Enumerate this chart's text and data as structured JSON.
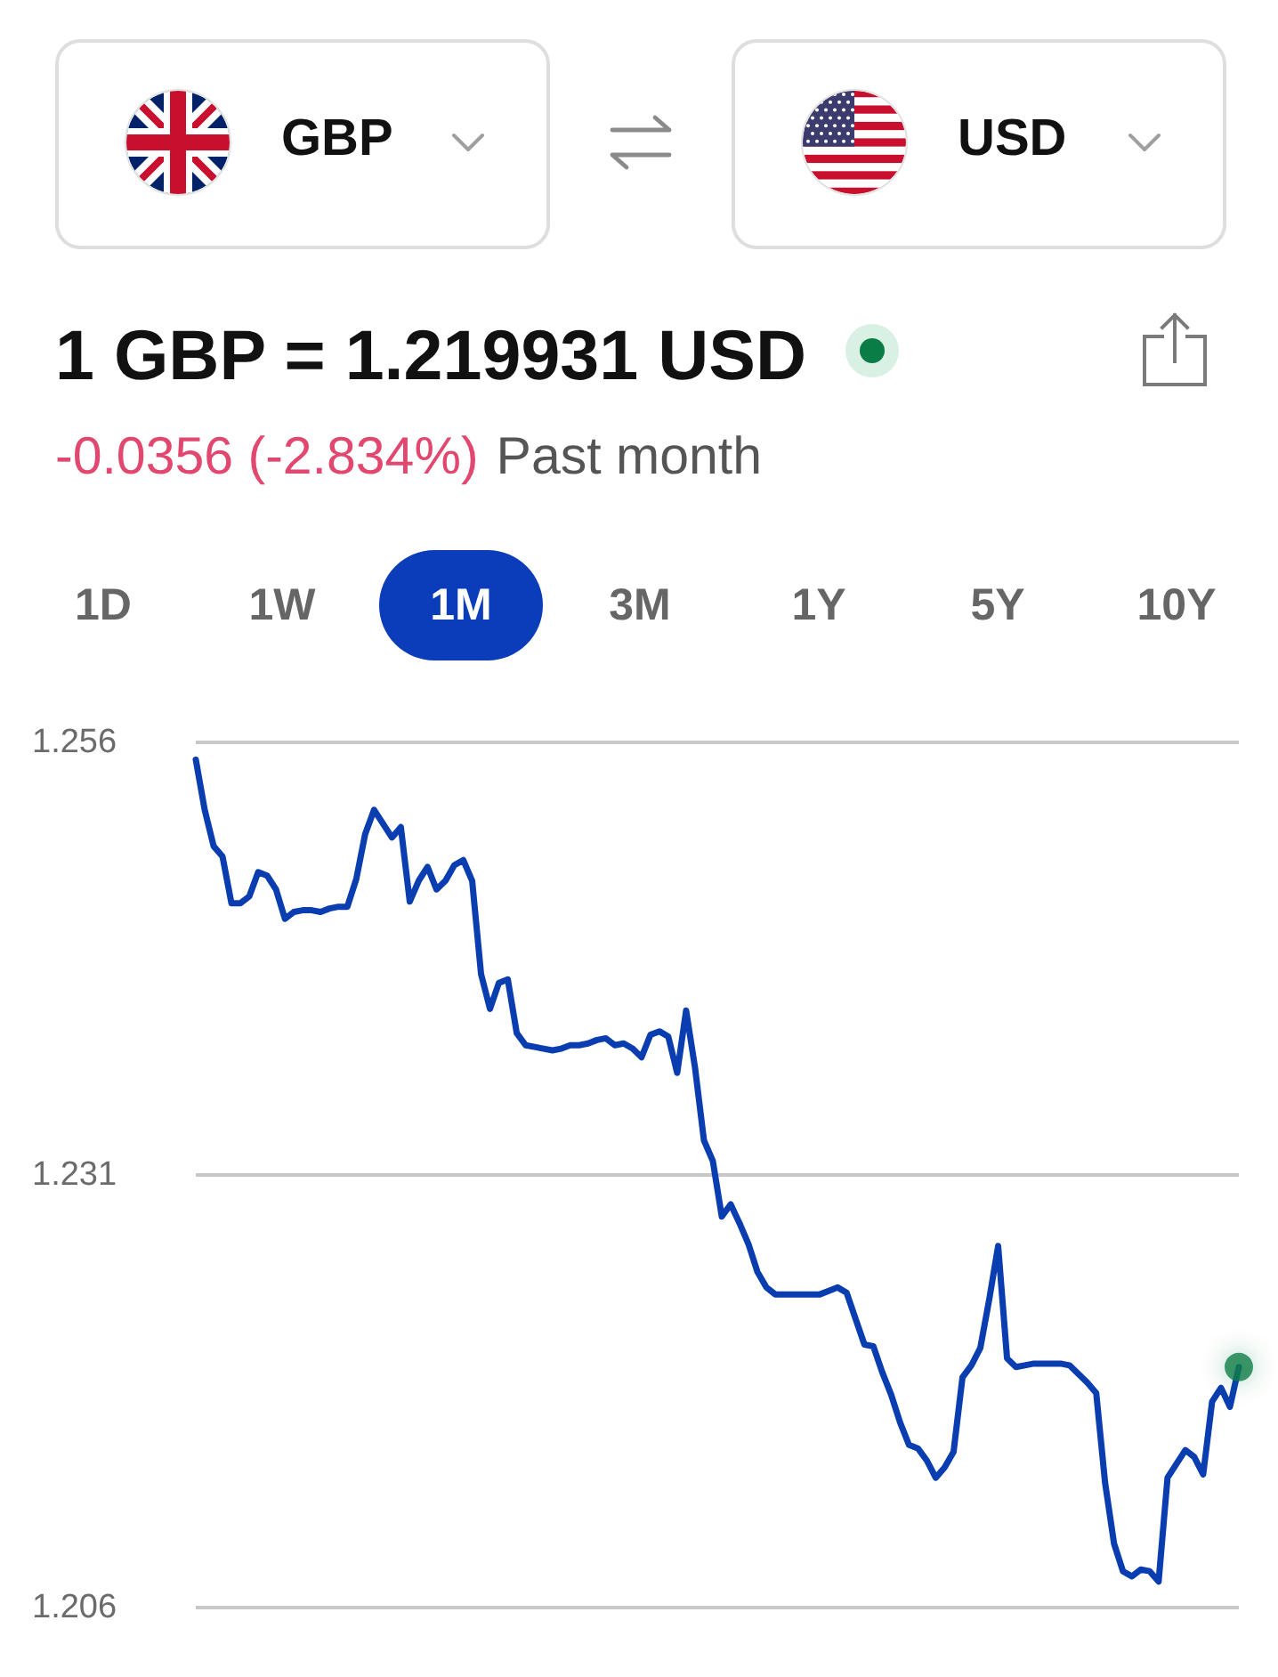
{
  "chart_data": {
    "type": "line",
    "title": "1 GBP = 1.219931 USD",
    "subtitle": "-0.0356 (-2.834%)",
    "annotations": [
      "GBP",
      "USD",
      "Past month",
      "1D",
      "1W",
      "1M",
      "3M",
      "1Y",
      "5Y",
      "10Y"
    ],
    "categories": [
      null,
      null,
      null,
      null,
      null,
      null,
      null,
      null,
      null,
      null,
      null,
      null,
      null,
      null,
      null,
      null,
      null,
      null,
      null,
      null,
      null,
      null,
      null,
      null,
      null,
      null,
      null,
      null,
      null,
      null,
      null,
      null,
      null,
      null,
      null,
      null,
      null,
      null,
      null,
      null,
      null,
      null,
      null,
      null,
      null,
      null,
      null,
      null,
      null,
      null,
      null,
      null,
      null,
      null,
      null,
      null,
      null,
      null,
      null,
      null,
      null,
      null,
      null,
      null,
      null,
      null,
      null,
      null,
      null,
      null,
      null,
      null,
      null,
      null,
      null,
      null,
      null,
      null,
      null,
      null,
      null,
      null,
      null,
      null,
      null,
      null,
      null,
      null,
      null,
      null,
      null,
      null,
      null,
      null,
      null,
      null,
      null,
      null,
      null,
      null,
      null,
      null,
      null,
      null,
      null,
      null,
      null,
      null,
      null,
      null,
      null,
      null,
      null,
      null,
      null,
      null,
      null,
      null
    ],
    "series": [
      {
        "color": "#0a3db0",
        "marker": "none",
        "values": [
          1.255,
          1.2521,
          1.25,
          1.2494,
          1.2467,
          1.2467,
          1.2471,
          1.2485,
          1.2483,
          1.2475,
          1.2458,
          1.2462,
          1.2463,
          1.2463,
          1.2462,
          1.2464,
          1.2465,
          1.2465,
          1.2481,
          1.2507,
          1.2521,
          1.2513,
          1.2505,
          1.2511,
          1.2468,
          1.248,
          1.2488,
          1.2475,
          1.248,
          1.2489,
          1.2492,
          1.248,
          1.2426,
          1.2406,
          1.2421,
          1.2423,
          1.2392,
          1.2385,
          1.2384,
          1.2383,
          1.2382,
          1.2383,
          1.2385,
          1.2385,
          1.2386,
          1.2388,
          1.2389,
          1.2385,
          1.2386,
          1.2383,
          1.2378,
          1.2391,
          1.2393,
          1.239,
          1.2369,
          1.2405,
          1.2372,
          1.233,
          1.2318,
          1.2286,
          1.2293,
          1.2282,
          1.227,
          1.2254,
          1.2245,
          1.2241,
          1.2241,
          1.2241,
          1.2241,
          1.2241,
          1.2241,
          1.2243,
          1.2245,
          1.2242,
          1.2227,
          1.2212,
          1.2211,
          1.2196,
          1.2183,
          1.2167,
          1.2154,
          1.2152,
          1.2145,
          1.2135,
          1.2141,
          1.215,
          1.2193,
          1.22,
          1.221,
          1.2238,
          1.2269,
          1.2204,
          1.2199,
          1.22,
          1.2201,
          1.2201,
          1.2201,
          1.2201,
          1.22,
          1.2195,
          1.219,
          1.2184,
          1.2132,
          1.2097,
          1.2081,
          1.2078,
          1.2082,
          1.2081,
          1.2075,
          1.2135,
          1.2143,
          1.2151,
          1.2147,
          1.2137,
          1.2179,
          1.2187,
          1.2176,
          1.2199
        ]
      },
      {
        "type": "scatter",
        "color": "#0a7d46",
        "marker": "circle",
        "values": [
          null,
          null,
          null,
          null,
          null,
          null,
          null,
          null,
          null,
          null,
          null,
          null,
          null,
          null,
          null,
          null,
          null,
          null,
          null,
          null,
          null,
          null,
          null,
          null,
          null,
          null,
          null,
          null,
          null,
          null,
          null,
          null,
          null,
          null,
          null,
          null,
          null,
          null,
          null,
          null,
          null,
          null,
          null,
          null,
          null,
          null,
          null,
          null,
          null,
          null,
          null,
          null,
          null,
          null,
          null,
          null,
          null,
          null,
          null,
          null,
          null,
          null,
          null,
          null,
          null,
          null,
          null,
          null,
          null,
          null,
          null,
          null,
          null,
          null,
          null,
          null,
          null,
          null,
          null,
          null,
          null,
          null,
          null,
          null,
          null,
          null,
          null,
          null,
          null,
          null,
          null,
          null,
          null,
          null,
          null,
          null,
          null,
          null,
          null,
          null,
          null,
          null,
          null,
          null,
          null,
          null,
          null,
          null,
          null,
          null,
          null,
          null,
          null,
          null,
          null,
          null,
          null,
          1.2199
        ]
      }
    ],
    "ylim": [
      1.206,
      1.256
    ],
    "yticks": [
      1.206,
      1.231,
      1.256
    ],
    "grid": "y",
    "tick_labels": "y"
  }
}
